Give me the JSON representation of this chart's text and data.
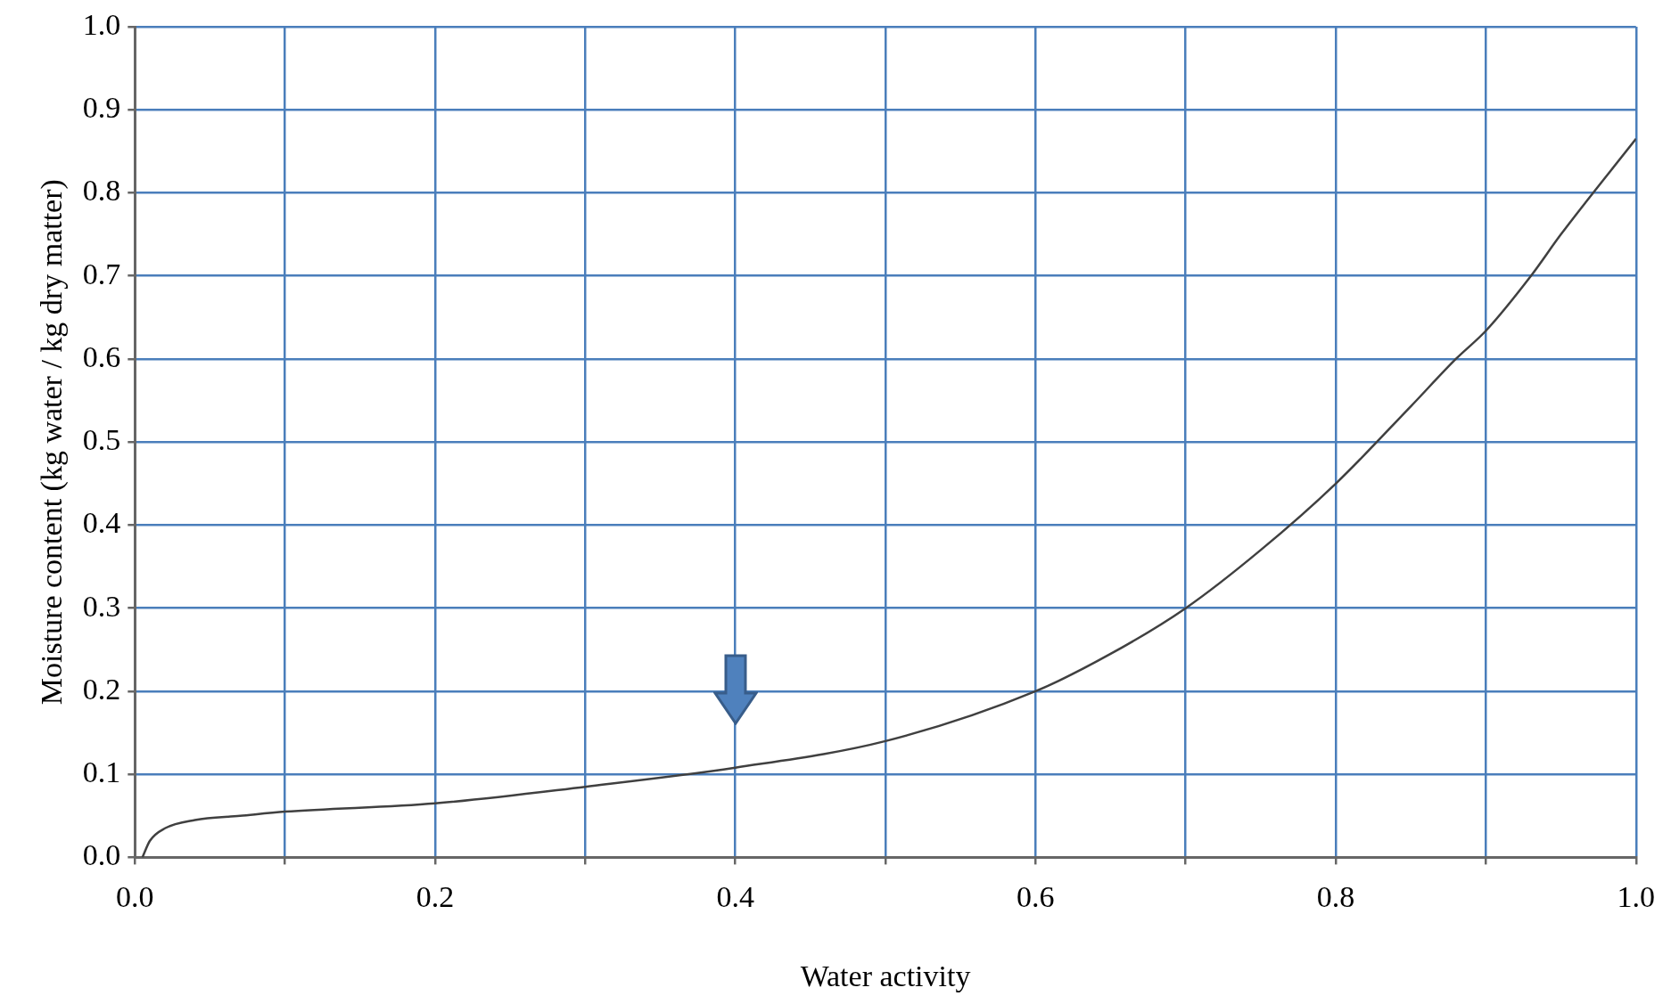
{
  "chart_data": {
    "type": "line",
    "xlabel": "Water activity",
    "ylabel": "Moisture content (kg water / kg dry matter)",
    "xlim": [
      0,
      1
    ],
    "ylim": [
      0,
      1
    ],
    "xticks": [
      {
        "value": 0,
        "label": "0.0"
      },
      {
        "value": 0.1,
        "label": null
      },
      {
        "value": 0.2,
        "label": "0.2"
      },
      {
        "value": 0.3,
        "label": null
      },
      {
        "value": 0.4,
        "label": "0.4"
      },
      {
        "value": 0.5,
        "label": null
      },
      {
        "value": 0.6,
        "label": "0.6"
      },
      {
        "value": 0.7,
        "label": null
      },
      {
        "value": 0.8,
        "label": "0.8"
      },
      {
        "value": 0.9,
        "label": null
      },
      {
        "value": 1,
        "label": "1.0"
      }
    ],
    "yticks": [
      {
        "value": 0,
        "label": "0.0"
      },
      0.1,
      0.2,
      0.3,
      0.4,
      0.5,
      0.6,
      0.7,
      0.8,
      0.9,
      {
        "value": 1,
        "label": "1.0"
      }
    ],
    "grid": true,
    "legend": false,
    "marker": "none",
    "line_style": "solid",
    "series": [
      {
        "color": "#404040",
        "x": [
          0.005,
          0.01,
          0.02,
          0.04,
          0.07,
          0.1,
          0.2,
          0.3,
          0.4,
          0.5,
          0.6,
          0.65,
          0.7,
          0.75,
          0.8,
          0.85,
          0.88,
          0.9,
          0.93,
          0.95,
          1.0
        ],
        "values": [
          0,
          0.02,
          0.035,
          0.045,
          0.05,
          0.055,
          0.065,
          0.085,
          0.108,
          0.14,
          0.2,
          0.245,
          0.3,
          0.37,
          0.45,
          0.543,
          0.6,
          0.634,
          0.7,
          0.75,
          0.865
        ]
      }
    ]
  }
}
